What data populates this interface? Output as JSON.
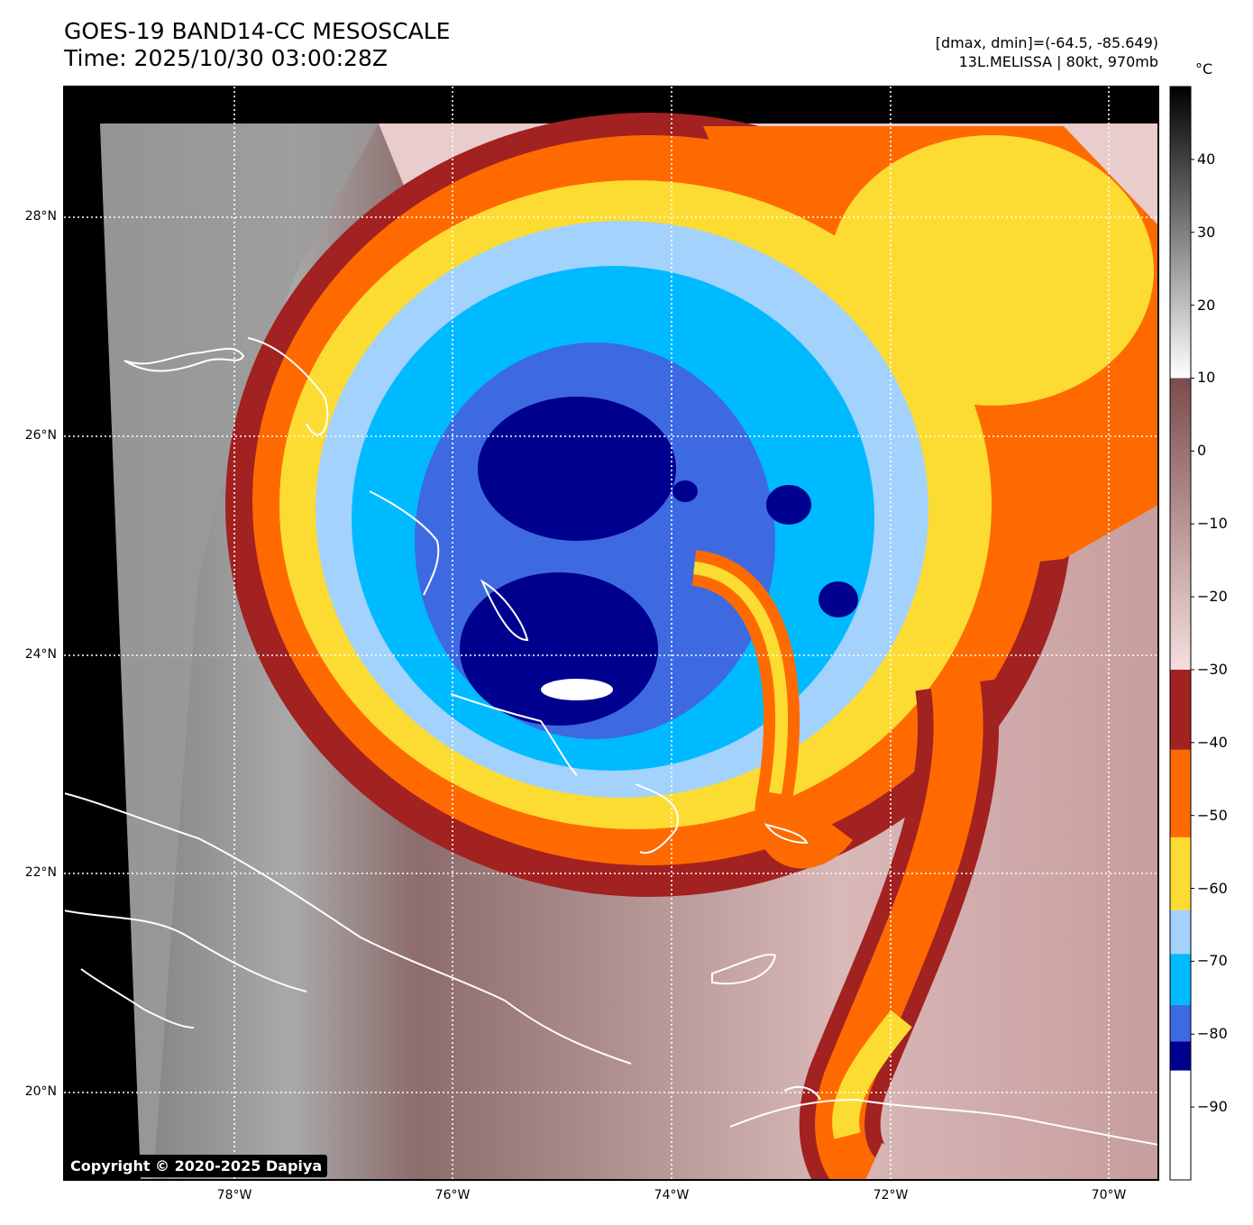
{
  "header": {
    "title_line1": "GOES-19 BAND14-CC MESOSCALE",
    "title_line2": "Time: 2025/10/30 03:00:28Z",
    "range_text": "[dmax, dmin]=(-64.5, -85.649)",
    "storm_text": "13L.MELISSA | 80kt, 970mb"
  },
  "colorbar": {
    "unit": "°C",
    "ticks": [
      "40",
      "30",
      "20",
      "10",
      "0",
      "−10",
      "−20",
      "−30",
      "−40",
      "−50",
      "−60",
      "−70",
      "−80",
      "−90"
    ],
    "bands": [
      {
        "from": 10,
        "to": 50,
        "kind": "gray",
        "colors": [
          "#ffffff",
          "#000000"
        ]
      },
      {
        "from": -30,
        "to": 10,
        "kind": "gradient",
        "colors": [
          "#f6dede",
          "#7b4c4c"
        ]
      },
      {
        "from": -41,
        "to": -30,
        "color": "#a22121"
      },
      {
        "from": -53,
        "to": -41,
        "color": "#ff6a00"
      },
      {
        "from": -63,
        "to": -53,
        "color": "#fcdc32"
      },
      {
        "from": -69,
        "to": -63,
        "color": "#a3d2fc"
      },
      {
        "from": -76,
        "to": -69,
        "color": "#00baff"
      },
      {
        "from": -81,
        "to": -76,
        "color": "#3d6ae1"
      },
      {
        "from": -85,
        "to": -81,
        "color": "#00008f"
      },
      {
        "from": -100,
        "to": -85,
        "color": "#ffffff"
      }
    ]
  },
  "axes": {
    "lat_labels": [
      "28°N",
      "26°N",
      "24°N",
      "22°N",
      "20°N"
    ],
    "lon_labels": [
      "78°W",
      "76°W",
      "74°W",
      "72°W",
      "70°W"
    ]
  },
  "copyright": "Copyright © 2020-2025 Dapiya"
}
